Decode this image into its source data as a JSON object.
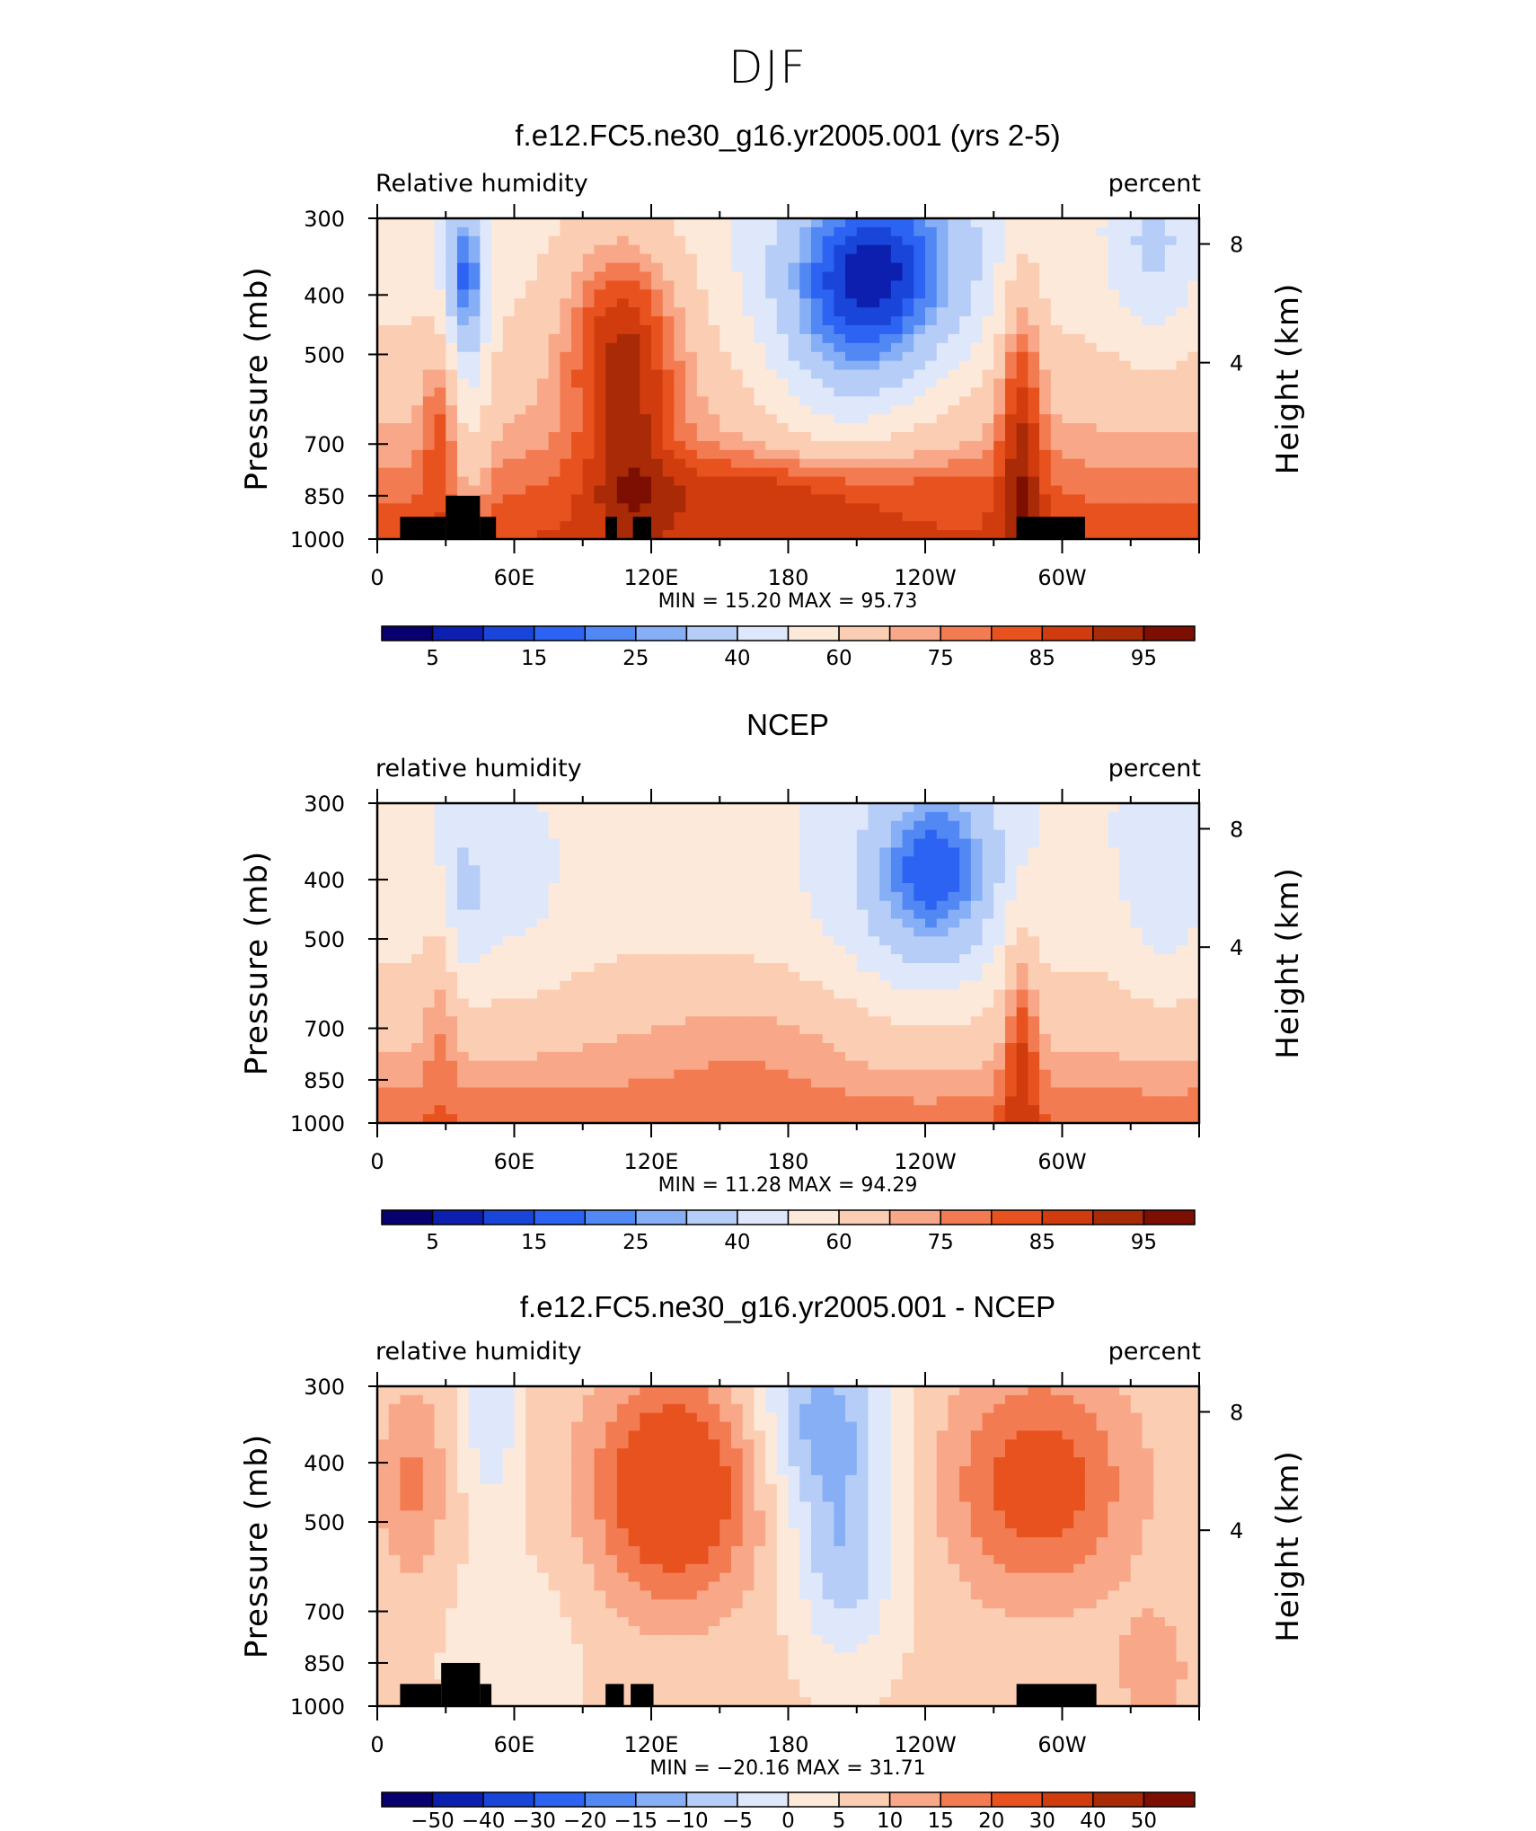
{
  "page_title": "DJF",
  "colors": {
    "rh_palette": [
      "#08006e",
      "#0d1fae",
      "#1a45d9",
      "#2d63f2",
      "#5288f4",
      "#86aff6",
      "#b6cdf7",
      "#dfe8fb",
      "#fde9d9",
      "#fbcdb2",
      "#f8a888",
      "#f37b52",
      "#e8521f",
      "#d03c0d",
      "#a82a06",
      "#7d0e02"
    ],
    "diff_palette": [
      "#08006e",
      "#0d1fae",
      "#1a45d9",
      "#2d63f2",
      "#5288f4",
      "#86aff6",
      "#b6cdf7",
      "#dfe8fb",
      "#fde9d9",
      "#fbcdb2",
      "#f8a888",
      "#f37b52",
      "#e8521f",
      "#d03c0d",
      "#a82a06",
      "#7d0e02"
    ],
    "land_mask": "#000000"
  },
  "panels": [
    {
      "id": "model",
      "title": "f.e12.FC5.ne30_g16.yr2005.001 (yrs 2-5)",
      "left_label": "Relative humidity",
      "right_label": "percent",
      "stats": "MIN =   15.20   MAX =   95.73",
      "colorbar_labels": [
        "5",
        "15",
        "25",
        "40",
        "60",
        "75",
        "85",
        "95"
      ]
    },
    {
      "id": "ncep",
      "title": "NCEP",
      "left_label": "relative humidity",
      "right_label": "percent",
      "stats": "MIN =   11.28   MAX =   94.29",
      "colorbar_labels": [
        "5",
        "15",
        "25",
        "40",
        "60",
        "75",
        "85",
        "95"
      ]
    },
    {
      "id": "diff",
      "title": "f.e12.FC5.ne30_g16.yr2005.001 - NCEP",
      "left_label": "relative humidity",
      "right_label": "percent",
      "stats": "MIN = −20.16   MAX =   31.71",
      "colorbar_labels": [
        "−50",
        "−40",
        "−30",
        "−20",
        "−15",
        "−10",
        "−5",
        "0",
        "5",
        "10",
        "15",
        "20",
        "30",
        "40",
        "50"
      ]
    }
  ],
  "axes": {
    "y_title": "Pressure (mb)",
    "y2_title": "Height (km)",
    "y_ticks": [
      "300",
      "400",
      "500",
      "700",
      "850",
      "1000"
    ],
    "y2_ticks": [
      "8",
      "4"
    ],
    "x_ticks": [
      "0",
      "60E",
      "120E",
      "180",
      "120W",
      "60W"
    ]
  },
  "chart_data": [
    {
      "type": "heatmap",
      "title": "f.e12.FC5.ne30_g16.yr2005.001 (yrs 2-5)",
      "variable": "Relative humidity",
      "units": "percent",
      "x": [
        0,
        30,
        60,
        90,
        120,
        150,
        180,
        210,
        240,
        270,
        300,
        330,
        360
      ],
      "x_tick_labels": [
        "0",
        "60E",
        "120E",
        "180",
        "120W",
        "60W"
      ],
      "y_pressure_mb": [
        300,
        400,
        500,
        700,
        850,
        1000
      ],
      "min": 15.2,
      "max": 95.73,
      "levels": [
        5,
        10,
        15,
        20,
        25,
        30,
        40,
        50,
        60,
        70,
        75,
        80,
        85,
        90,
        95
      ]
    },
    {
      "type": "heatmap",
      "title": "NCEP",
      "variable": "relative humidity",
      "units": "percent",
      "x": [
        0,
        30,
        60,
        90,
        120,
        150,
        180,
        210,
        240,
        270,
        300,
        330,
        360
      ],
      "x_tick_labels": [
        "0",
        "60E",
        "120E",
        "180",
        "120W",
        "60W"
      ],
      "y_pressure_mb": [
        300,
        400,
        500,
        700,
        850,
        1000
      ],
      "min": 11.28,
      "max": 94.29,
      "levels": [
        5,
        10,
        15,
        20,
        25,
        30,
        40,
        50,
        60,
        70,
        75,
        80,
        85,
        90,
        95
      ]
    },
    {
      "type": "heatmap",
      "title": "f.e12.FC5.ne30_g16.yr2005.001 - NCEP",
      "variable": "relative humidity",
      "units": "percent",
      "x": [
        0,
        30,
        60,
        90,
        120,
        150,
        180,
        210,
        240,
        270,
        300,
        330,
        360
      ],
      "x_tick_labels": [
        "0",
        "60E",
        "120E",
        "180",
        "120W",
        "60W"
      ],
      "y_pressure_mb": [
        300,
        400,
        500,
        700,
        850,
        1000
      ],
      "min": -20.16,
      "max": 31.71,
      "levels": [
        -50,
        -40,
        -30,
        -20,
        -15,
        -10,
        -5,
        0,
        5,
        10,
        15,
        20,
        30,
        40,
        50
      ]
    }
  ]
}
